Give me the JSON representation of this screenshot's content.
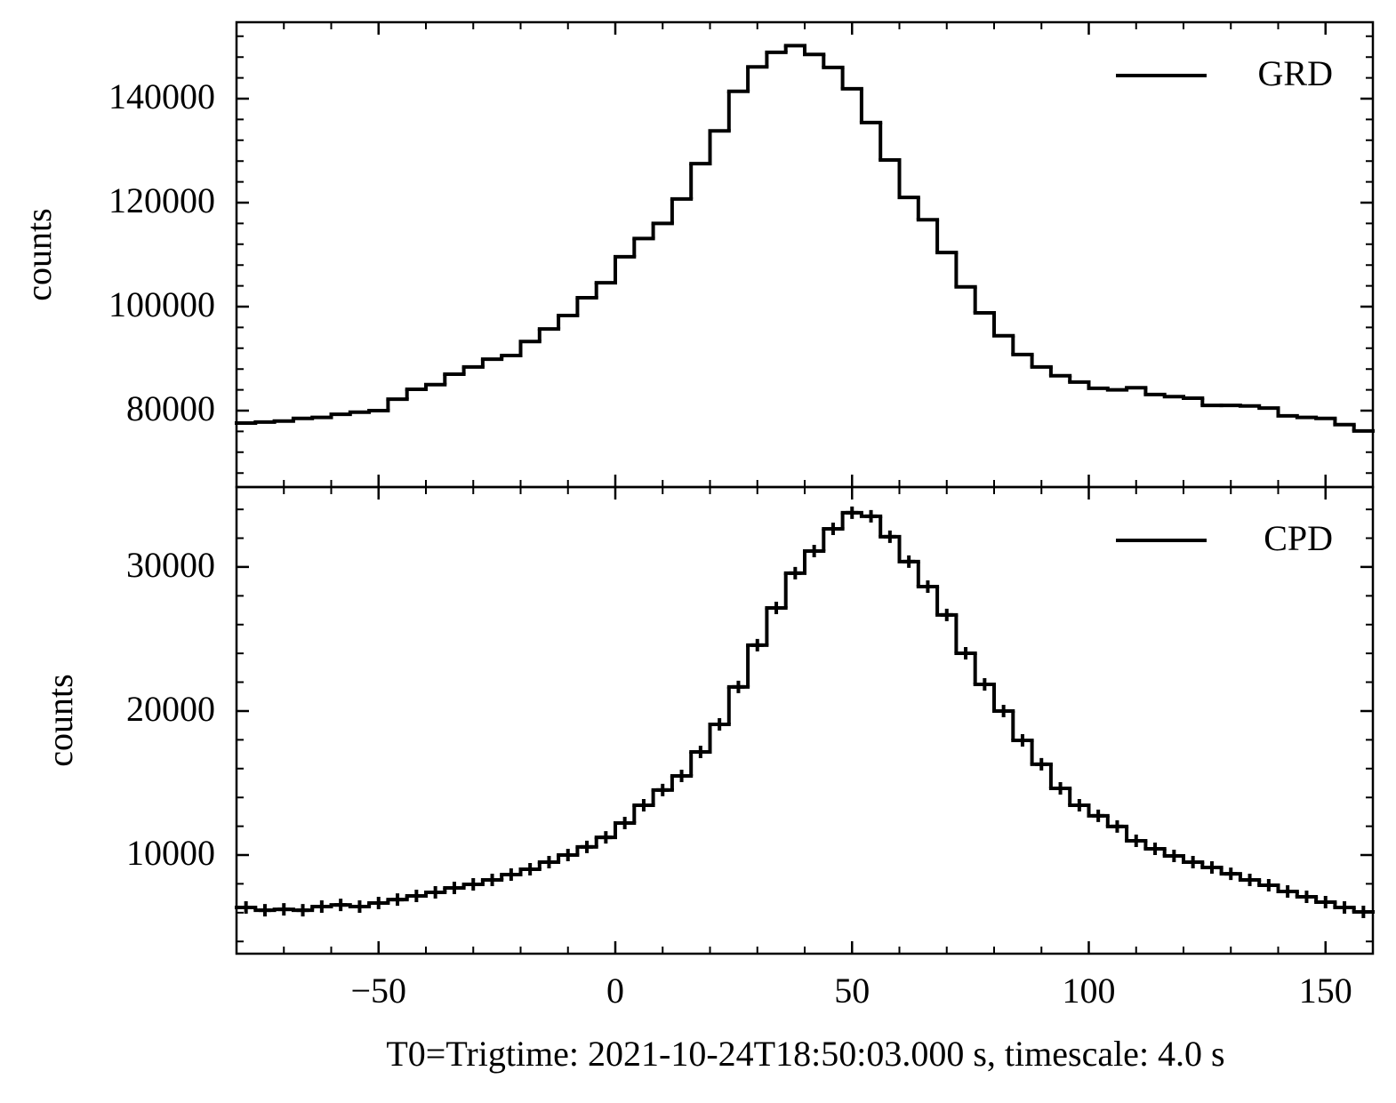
{
  "chart_data": [
    {
      "type": "histogram",
      "histtype": "step",
      "y_label": "counts",
      "legend_loc": "upper right",
      "bins": [
        -80,
        -76,
        -72,
        -68,
        -64,
        -60,
        -56,
        -52,
        -48,
        -44,
        -40,
        -36,
        -32,
        -28,
        -24,
        -20,
        -16,
        -12,
        -8,
        -4,
        0,
        4,
        8,
        12,
        16,
        20,
        24,
        28,
        32,
        36,
        40,
        44,
        48,
        52,
        56,
        60,
        64,
        68,
        72,
        76,
        80,
        84,
        88,
        92,
        96,
        100,
        104,
        108,
        112,
        116,
        120,
        124,
        128,
        132,
        136,
        140,
        144,
        148,
        152,
        156,
        160
      ],
      "series": [
        {
          "name": "GRD",
          "color": "#000000",
          "values": [
            77600,
            77800,
            78000,
            78500,
            78700,
            79300,
            79700,
            80000,
            82200,
            84100,
            85000,
            87000,
            88400,
            89900,
            90600,
            93300,
            95700,
            98300,
            101700,
            104600,
            109600,
            113100,
            116000,
            120700,
            127500,
            133800,
            141400,
            146100,
            148900,
            150200,
            148500,
            146000,
            141900,
            135400,
            128200,
            121000,
            116700,
            110400,
            103800,
            98800,
            94400,
            90800,
            88400,
            86700,
            85500,
            84300,
            84000,
            84400,
            83100,
            82700,
            82400,
            81000,
            81000,
            80900,
            80500,
            79000,
            78700,
            78500,
            77300,
            76100
          ]
        }
      ],
      "xlim": [
        -80,
        160
      ],
      "ylim": [
        65300,
        154700
      ],
      "yticks": [
        80000,
        100000,
        120000,
        140000
      ],
      "xminor": [
        -70,
        -60,
        -40,
        -30,
        -20,
        -10,
        10,
        20,
        30,
        40,
        60,
        70,
        80,
        90,
        110,
        120,
        130,
        140
      ],
      "yminor": [
        68000,
        72000,
        76000,
        84000,
        88000,
        92000,
        96000,
        104000,
        108000,
        112000,
        116000,
        124000,
        128000,
        132000,
        136000,
        144000,
        148000,
        152000
      ]
    },
    {
      "type": "histogram",
      "histtype": "step",
      "marker": "+",
      "y_label": "counts",
      "legend_loc": "upper right",
      "x_label": "T0=Trigtime: 2021-10-24T18:50:03.000 s, timescale: 4.0 s",
      "bins": [
        -80,
        -76,
        -72,
        -68,
        -64,
        -60,
        -56,
        -52,
        -48,
        -44,
        -40,
        -36,
        -32,
        -28,
        -24,
        -20,
        -16,
        -12,
        -8,
        -4,
        0,
        4,
        8,
        12,
        16,
        20,
        24,
        28,
        32,
        36,
        40,
        44,
        48,
        52,
        56,
        60,
        64,
        68,
        72,
        76,
        80,
        84,
        88,
        92,
        96,
        100,
        104,
        108,
        112,
        116,
        120,
        124,
        128,
        132,
        136,
        140,
        144,
        148,
        152,
        156,
        160
      ],
      "series": [
        {
          "name": "CPD",
          "color": "#000000",
          "values": [
            6360,
            6170,
            6230,
            6170,
            6420,
            6540,
            6420,
            6670,
            6910,
            7160,
            7410,
            7720,
            7960,
            8270,
            8640,
            9010,
            9510,
            10000,
            10560,
            11230,
            12220,
            13460,
            14510,
            15490,
            17160,
            19070,
            21670,
            24570,
            27160,
            29570,
            31110,
            32650,
            33770,
            33520,
            32100,
            30370,
            28640,
            26670,
            24010,
            21850,
            20000,
            17960,
            16300,
            14630,
            13460,
            12720,
            11980,
            10990,
            10430,
            9940,
            9510,
            9140,
            8700,
            8270,
            7900,
            7470,
            7100,
            6730,
            6360,
            6050
          ]
        }
      ],
      "xlim": [
        -80,
        160
      ],
      "ylim": [
        3150,
        35550
      ],
      "xticks": [
        {
          "value": -50,
          "label": "−50"
        },
        0,
        50,
        100,
        150
      ],
      "yticks": [
        10000,
        20000,
        30000
      ],
      "xminor": [
        -70,
        -60,
        -40,
        -30,
        -20,
        -10,
        10,
        20,
        30,
        40,
        60,
        70,
        80,
        90,
        110,
        120,
        130,
        140
      ],
      "yminor": [
        4000,
        6000,
        8000,
        12000,
        14000,
        16000,
        18000,
        22000,
        24000,
        26000,
        28000,
        32000,
        34000
      ]
    }
  ]
}
